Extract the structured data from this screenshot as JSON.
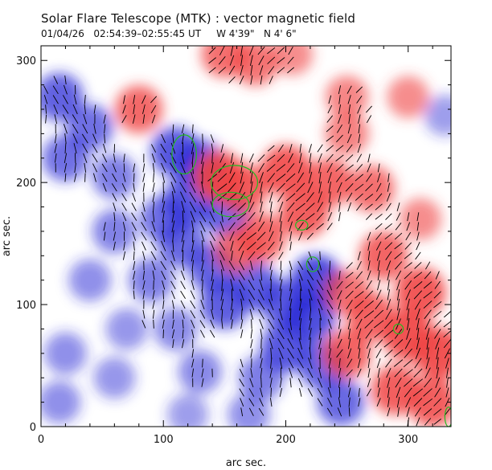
{
  "chart_data": {
    "type": "heatmap",
    "title": "Solar Flare Telescope (MTK) : vector magnetic field",
    "subtitle": "01/04/26   02:54:39–02:55:45 UT     W 4'39\"   N 4' 6\"",
    "xlabel": "arc sec.",
    "ylabel": "arc sec.",
    "xlim": [
      0,
      335
    ],
    "ylim": [
      0,
      312
    ],
    "x_ticks": [
      0,
      100,
      200,
      300
    ],
    "y_ticks": [
      0,
      100,
      200,
      300
    ],
    "colors": {
      "positive_polarity": "#f04040",
      "negative_polarity": "#2a2ad6",
      "neutral": "#ffffff",
      "contour": "#22bb22",
      "vectors": "#000000"
    },
    "positive_regions": [
      {
        "x": 145,
        "y": 205,
        "strength": 1.0
      },
      {
        "x": 165,
        "y": 195,
        "strength": 0.9
      },
      {
        "x": 200,
        "y": 210,
        "strength": 0.95
      },
      {
        "x": 235,
        "y": 200,
        "strength": 0.85
      },
      {
        "x": 215,
        "y": 175,
        "strength": 0.9
      },
      {
        "x": 270,
        "y": 195,
        "strength": 0.75
      },
      {
        "x": 180,
        "y": 155,
        "strength": 0.85
      },
      {
        "x": 160,
        "y": 145,
        "strength": 0.7
      },
      {
        "x": 280,
        "y": 140,
        "strength": 0.85
      },
      {
        "x": 310,
        "y": 110,
        "strength": 0.95
      },
      {
        "x": 300,
        "y": 75,
        "strength": 1.0
      },
      {
        "x": 325,
        "y": 60,
        "strength": 1.0
      },
      {
        "x": 270,
        "y": 90,
        "strength": 0.85
      },
      {
        "x": 250,
        "y": 60,
        "strength": 0.85
      },
      {
        "x": 290,
        "y": 30,
        "strength": 0.9
      },
      {
        "x": 320,
        "y": 20,
        "strength": 0.9
      },
      {
        "x": 250,
        "y": 110,
        "strength": 0.7
      },
      {
        "x": 150,
        "y": 305,
        "strength": 0.75
      },
      {
        "x": 175,
        "y": 298,
        "strength": 0.7
      },
      {
        "x": 205,
        "y": 305,
        "strength": 0.5
      },
      {
        "x": 250,
        "y": 270,
        "strength": 0.55
      },
      {
        "x": 300,
        "y": 270,
        "strength": 0.5
      },
      {
        "x": 250,
        "y": 240,
        "strength": 0.6
      },
      {
        "x": 80,
        "y": 260,
        "strength": 0.8
      },
      {
        "x": 310,
        "y": 170,
        "strength": 0.5
      }
    ],
    "negative_regions": [
      {
        "x": 15,
        "y": 270,
        "strength": 0.8
      },
      {
        "x": 40,
        "y": 245,
        "strength": 0.7
      },
      {
        "x": 20,
        "y": 220,
        "strength": 0.7
      },
      {
        "x": 60,
        "y": 205,
        "strength": 0.6
      },
      {
        "x": 110,
        "y": 225,
        "strength": 0.9
      },
      {
        "x": 130,
        "y": 215,
        "strength": 0.85
      },
      {
        "x": 120,
        "y": 185,
        "strength": 0.9
      },
      {
        "x": 150,
        "y": 175,
        "strength": 0.8
      },
      {
        "x": 100,
        "y": 170,
        "strength": 0.7
      },
      {
        "x": 115,
        "y": 150,
        "strength": 0.75
      },
      {
        "x": 140,
        "y": 130,
        "strength": 0.8
      },
      {
        "x": 150,
        "y": 100,
        "strength": 0.85
      },
      {
        "x": 175,
        "y": 115,
        "strength": 0.8
      },
      {
        "x": 200,
        "y": 100,
        "strength": 0.85
      },
      {
        "x": 225,
        "y": 120,
        "strength": 1.0
      },
      {
        "x": 220,
        "y": 90,
        "strength": 0.95
      },
      {
        "x": 200,
        "y": 65,
        "strength": 0.9
      },
      {
        "x": 230,
        "y": 50,
        "strength": 0.8
      },
      {
        "x": 245,
        "y": 20,
        "strength": 0.75
      },
      {
        "x": 90,
        "y": 120,
        "strength": 0.6
      },
      {
        "x": 60,
        "y": 160,
        "strength": 0.55
      },
      {
        "x": 40,
        "y": 120,
        "strength": 0.45
      },
      {
        "x": 110,
        "y": 80,
        "strength": 0.5
      },
      {
        "x": 70,
        "y": 80,
        "strength": 0.4
      },
      {
        "x": 60,
        "y": 40,
        "strength": 0.4
      },
      {
        "x": 130,
        "y": 45,
        "strength": 0.5
      },
      {
        "x": 180,
        "y": 40,
        "strength": 0.6
      },
      {
        "x": 20,
        "y": 60,
        "strength": 0.45
      },
      {
        "x": 15,
        "y": 20,
        "strength": 0.45
      },
      {
        "x": 170,
        "y": 10,
        "strength": 0.45
      },
      {
        "x": 120,
        "y": 10,
        "strength": 0.35
      },
      {
        "x": 330,
        "y": 255,
        "strength": 0.35
      }
    ],
    "contours": [
      {
        "x": 117,
        "y": 223,
        "rx": 10,
        "ry": 16
      },
      {
        "x": 158,
        "y": 200,
        "rx": 19,
        "ry": 14
      },
      {
        "x": 155,
        "y": 182,
        "rx": 15,
        "ry": 10
      },
      {
        "x": 213,
        "y": 165,
        "rx": 5,
        "ry": 4
      },
      {
        "x": 222,
        "y": 133,
        "rx": 5,
        "ry": 6
      },
      {
        "x": 292,
        "y": 80,
        "rx": 4,
        "ry": 4
      },
      {
        "x": 333,
        "y": 8,
        "rx": 3,
        "ry": 8
      }
    ]
  }
}
